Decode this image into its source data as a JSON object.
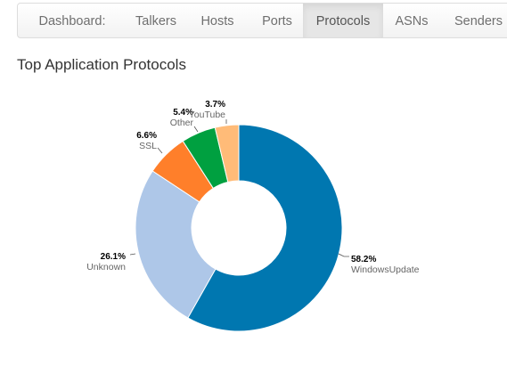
{
  "nav": {
    "items": [
      {
        "label": "Dashboard:",
        "active": false
      },
      {
        "label": "Talkers",
        "active": false
      },
      {
        "label": "Hosts",
        "active": false
      },
      {
        "label": "Ports",
        "active": false
      },
      {
        "label": "Protocols",
        "active": true
      },
      {
        "label": "ASNs",
        "active": false
      },
      {
        "label": "Senders",
        "active": false
      }
    ]
  },
  "page": {
    "title": "Top Application Protocols"
  },
  "chart_data": {
    "type": "pie",
    "donut": true,
    "title": "",
    "slices": [
      {
        "label": "WindowsUpdate",
        "value": 58.2,
        "value_label": "58.2%",
        "color": "#0077b0"
      },
      {
        "label": "Unknown",
        "value": 26.1,
        "value_label": "26.1%",
        "color": "#aec7e8"
      },
      {
        "label": "SSL",
        "value": 6.6,
        "value_label": "6.6%",
        "color": "#ff7f2a"
      },
      {
        "label": "Other",
        "value": 5.4,
        "value_label": "5.4%",
        "color": "#00a040"
      },
      {
        "label": "YouTube",
        "value": 3.7,
        "value_label": "3.7%",
        "color": "#ffbb78"
      }
    ]
  }
}
